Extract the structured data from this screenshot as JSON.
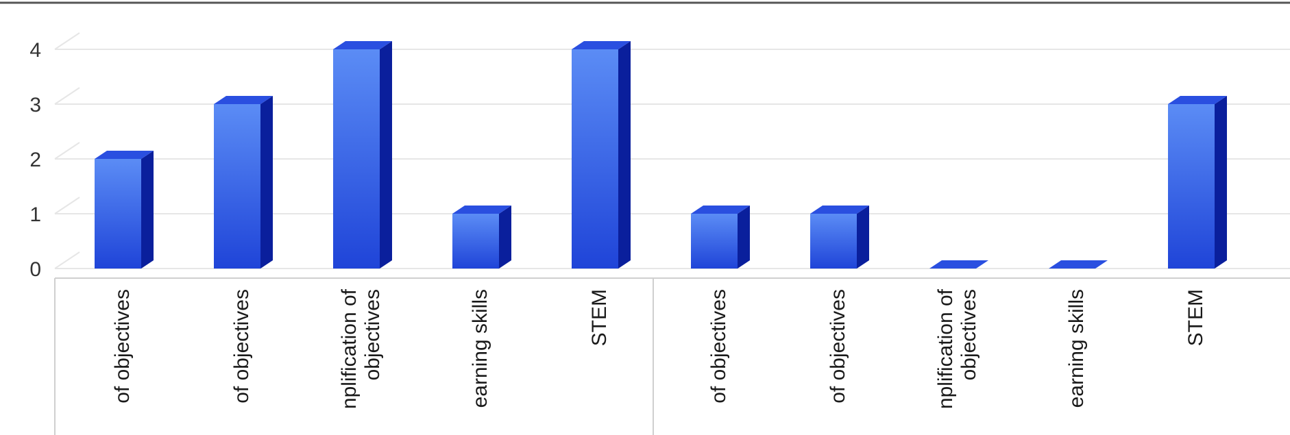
{
  "chart_data": {
    "type": "bar",
    "title": "",
    "xlabel": "",
    "ylabel": "",
    "ylim": [
      0,
      4
    ],
    "yticks": [
      0,
      1,
      2,
      3,
      4
    ],
    "grid": true,
    "categories": [
      [
        "of objectives"
      ],
      [
        "of objectives"
      ],
      [
        "nplification of",
        "objectives"
      ],
      [
        "earning skills"
      ],
      [
        "STEM"
      ],
      [
        "of objectives"
      ],
      [
        "of objectives"
      ],
      [
        "nplification of",
        "objectives"
      ],
      [
        "earning skills"
      ],
      [
        "STEM"
      ]
    ],
    "values": [
      2,
      3,
      4,
      1,
      4,
      1,
      1,
      0,
      0,
      3
    ],
    "colors": {
      "bar_front_top": "#5b8cf5",
      "bar_front_bottom": "#1f44d8",
      "bar_side": "#0a1f9c",
      "bar_top": "#2a4fe0",
      "grid": "#e6e6e6",
      "axis": "#cfcfcf",
      "frame": "#555555"
    }
  }
}
